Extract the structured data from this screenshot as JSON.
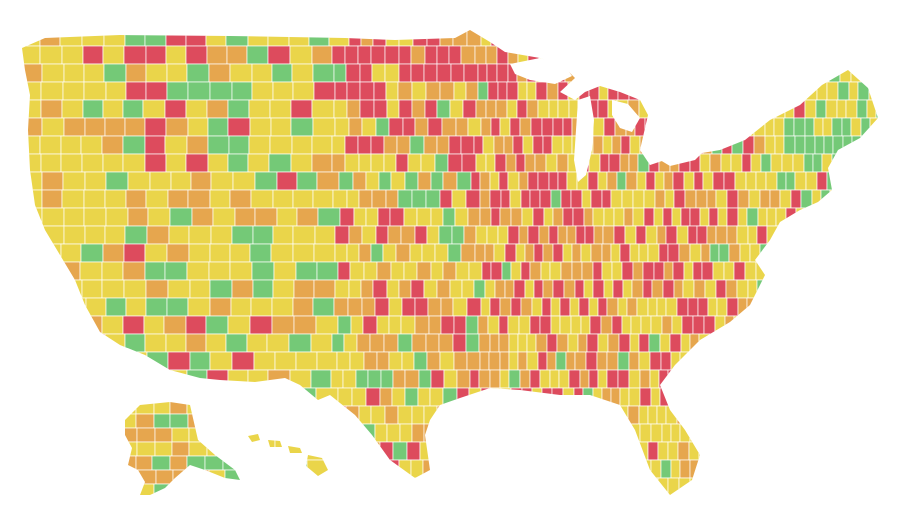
{
  "map": {
    "type": "choropleth",
    "subject": "US counties",
    "classes": [
      {
        "key": "green",
        "color": "#74c977"
      },
      {
        "key": "yellow",
        "color": "#ead54a"
      },
      {
        "key": "orange",
        "color": "#e6a64e"
      },
      {
        "key": "red",
        "color": "#dd4b5d"
      }
    ],
    "border_color": "#ffffff",
    "background": "#ffffff",
    "regions": [
      "contiguous-us",
      "alaska",
      "hawaii"
    ]
  }
}
